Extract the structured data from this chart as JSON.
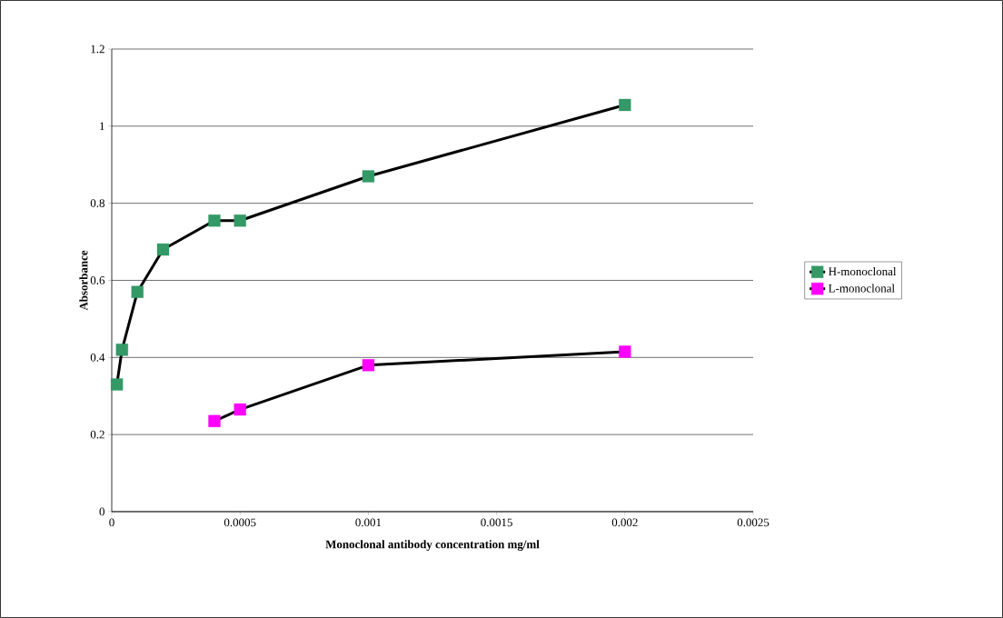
{
  "chart_data": {
    "type": "line",
    "xlabel": "Monoclonal antibody concentration mg/ml",
    "ylabel": "Absorbance",
    "series": [
      {
        "name": "H-monoclonal",
        "color": "#339966",
        "x": [
          2e-05,
          4e-05,
          0.0001,
          0.0002,
          0.0004,
          0.0005,
          0.001,
          0.002
        ],
        "values": [
          0.33,
          0.42,
          0.57,
          0.68,
          0.755,
          0.755,
          0.87,
          1.055
        ]
      },
      {
        "name": "L-monoclonal",
        "color": "#ff00ff",
        "x": [
          0.0004,
          0.0005,
          0.001,
          0.002
        ],
        "values": [
          0.235,
          0.265,
          0.38,
          0.415
        ]
      }
    ],
    "xlim": [
      0,
      0.0025
    ],
    "ylim": [
      0,
      1.2
    ],
    "xticks": [
      0,
      0.0005,
      0.001,
      0.0015,
      0.002,
      0.0025
    ],
    "yticks": [
      0,
      0.2,
      0.4,
      0.6,
      0.8,
      1,
      1.2
    ],
    "grid": "y",
    "legend": "right",
    "marker": "square",
    "line_style": "solid"
  }
}
